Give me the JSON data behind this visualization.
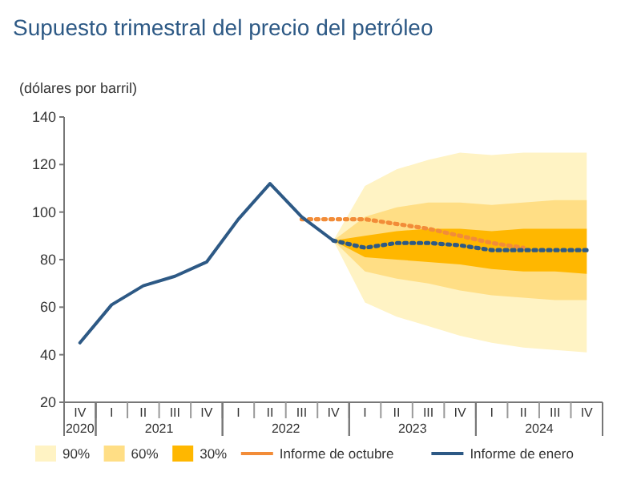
{
  "chart_data": {
    "type": "line",
    "title": "Supuesto trimestral del precio del petróleo",
    "ylabel": "(dólares por barril)",
    "categories": [
      "IV",
      "I",
      "II",
      "III",
      "IV",
      "I",
      "II",
      "III",
      "IV",
      "I",
      "II",
      "III",
      "IV",
      "I",
      "II",
      "III",
      "IV"
    ],
    "annotations": [
      "2020",
      "2021",
      "2022",
      "2023",
      "2024"
    ],
    "ylim": [
      20,
      140
    ],
    "yticks": [
      20,
      40,
      60,
      80,
      100,
      120,
      140
    ],
    "legend": "bottom",
    "series": [
      {
        "name": "90%",
        "type": "area",
        "color": "#fff3c4",
        "values": [
          null,
          null,
          null,
          null,
          null,
          null,
          null,
          null,
          null,
          null,
          null,
          null,
          null,
          null,
          null,
          null,
          null
        ],
        "upper": [
          null,
          null,
          null,
          null,
          null,
          null,
          null,
          null,
          88,
          111,
          118,
          122,
          125,
          124,
          125,
          125,
          125
        ],
        "lower": [
          null,
          null,
          null,
          null,
          null,
          null,
          null,
          null,
          88,
          62,
          56,
          52,
          48,
          45,
          43,
          42,
          41
        ]
      },
      {
        "name": "60%",
        "type": "area",
        "color": "#ffde85",
        "values": [
          null,
          null,
          null,
          null,
          null,
          null,
          null,
          null,
          null,
          null,
          null,
          null,
          null,
          null,
          null,
          null,
          null
        ],
        "upper": [
          null,
          null,
          null,
          null,
          null,
          null,
          null,
          null,
          88,
          98,
          102,
          104,
          104,
          103,
          104,
          105,
          105
        ],
        "lower": [
          null,
          null,
          null,
          null,
          null,
          null,
          null,
          null,
          88,
          75,
          72,
          70,
          67,
          65,
          64,
          63,
          63
        ]
      },
      {
        "name": "30%",
        "type": "area",
        "color": "#ffb700",
        "values": [
          null,
          null,
          null,
          null,
          null,
          null,
          null,
          null,
          null,
          null,
          null,
          null,
          null,
          null,
          null,
          null,
          null
        ],
        "upper": [
          null,
          null,
          null,
          null,
          null,
          null,
          null,
          null,
          88,
          90,
          92,
          93,
          93,
          92,
          93,
          93,
          93
        ],
        "lower": [
          null,
          null,
          null,
          null,
          null,
          null,
          null,
          null,
          88,
          81,
          80,
          79,
          78,
          76,
          75,
          75,
          74
        ]
      },
      {
        "name": "Informe de octubre",
        "color": "#f28c38",
        "line_style": "dotted",
        "values": [
          null,
          null,
          null,
          null,
          null,
          null,
          null,
          97,
          97,
          97,
          95,
          93,
          90,
          87,
          85,
          null,
          null
        ]
      },
      {
        "name": "Informe de enero",
        "color": "#2d5985",
        "line_style": "solid",
        "values": [
          45,
          61,
          69,
          73,
          79,
          97,
          112,
          98,
          88,
          null,
          null,
          null,
          null,
          null,
          null,
          null,
          null
        ]
      },
      {
        "color": "#2d5985",
        "line_style": "dotted",
        "values": [
          null,
          null,
          null,
          null,
          null,
          null,
          null,
          null,
          88,
          85,
          87,
          87,
          86,
          84,
          84,
          84,
          84
        ]
      }
    ]
  }
}
